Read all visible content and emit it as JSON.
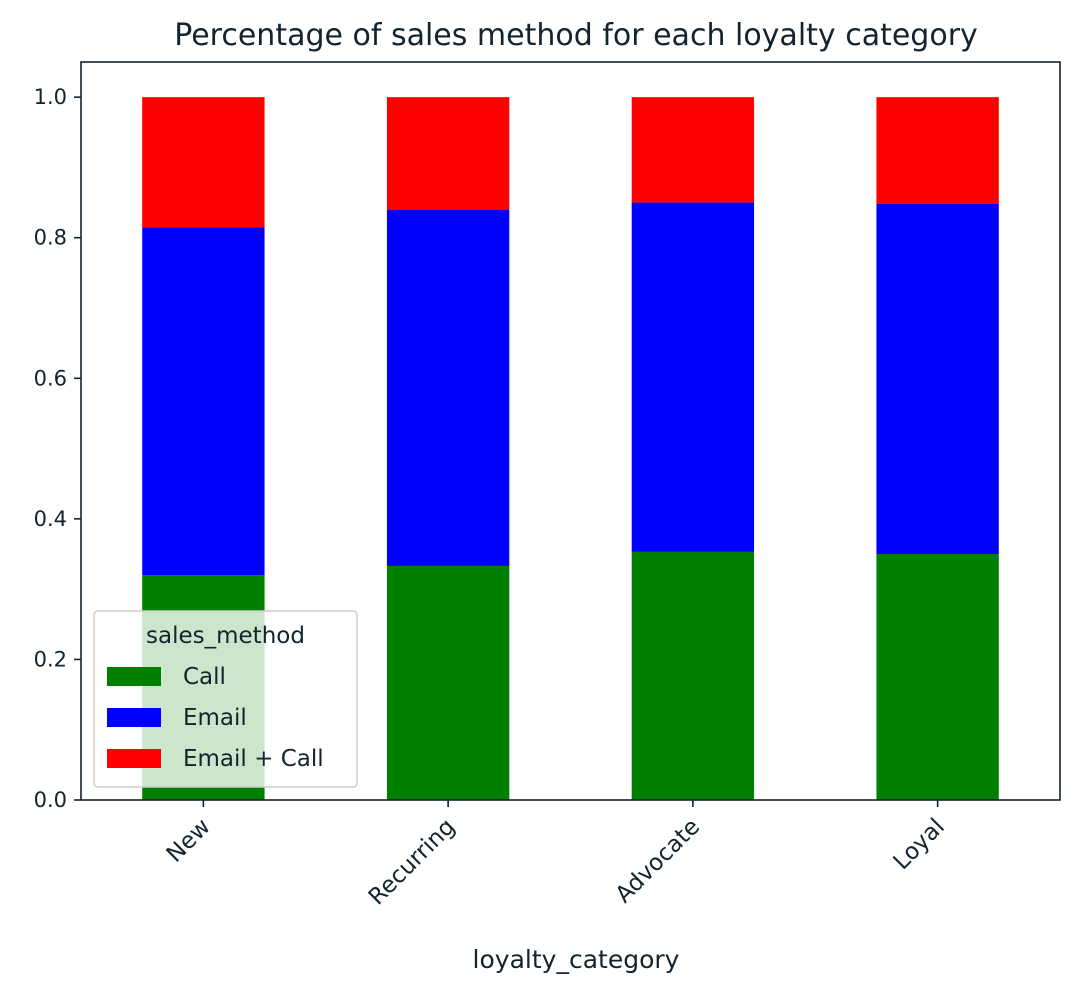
{
  "chart_data": {
    "type": "bar",
    "stacked": true,
    "title": "Percentage of sales method for each loyalty category",
    "xlabel": "loyalty_category",
    "ylabel": "",
    "categories": [
      "New",
      "Recurring",
      "Advocate",
      "Loyal"
    ],
    "ylim": [
      0,
      1.05
    ],
    "yticks": [
      "0.0",
      "0.2",
      "0.4",
      "0.6",
      "0.8",
      "1.0"
    ],
    "series": [
      {
        "name": "Call",
        "color": "#008000",
        "values": [
          0.32,
          0.333,
          0.353,
          0.35
        ]
      },
      {
        "name": "Email",
        "color": "#0000ff",
        "values": [
          0.495,
          0.507,
          0.497,
          0.498
        ]
      },
      {
        "name": "Email + Call",
        "color": "#ff0000",
        "values": [
          0.185,
          0.16,
          0.15,
          0.152
        ]
      }
    ],
    "legend": {
      "title": "sales_method",
      "placement": "lower-left"
    },
    "grid": false
  }
}
